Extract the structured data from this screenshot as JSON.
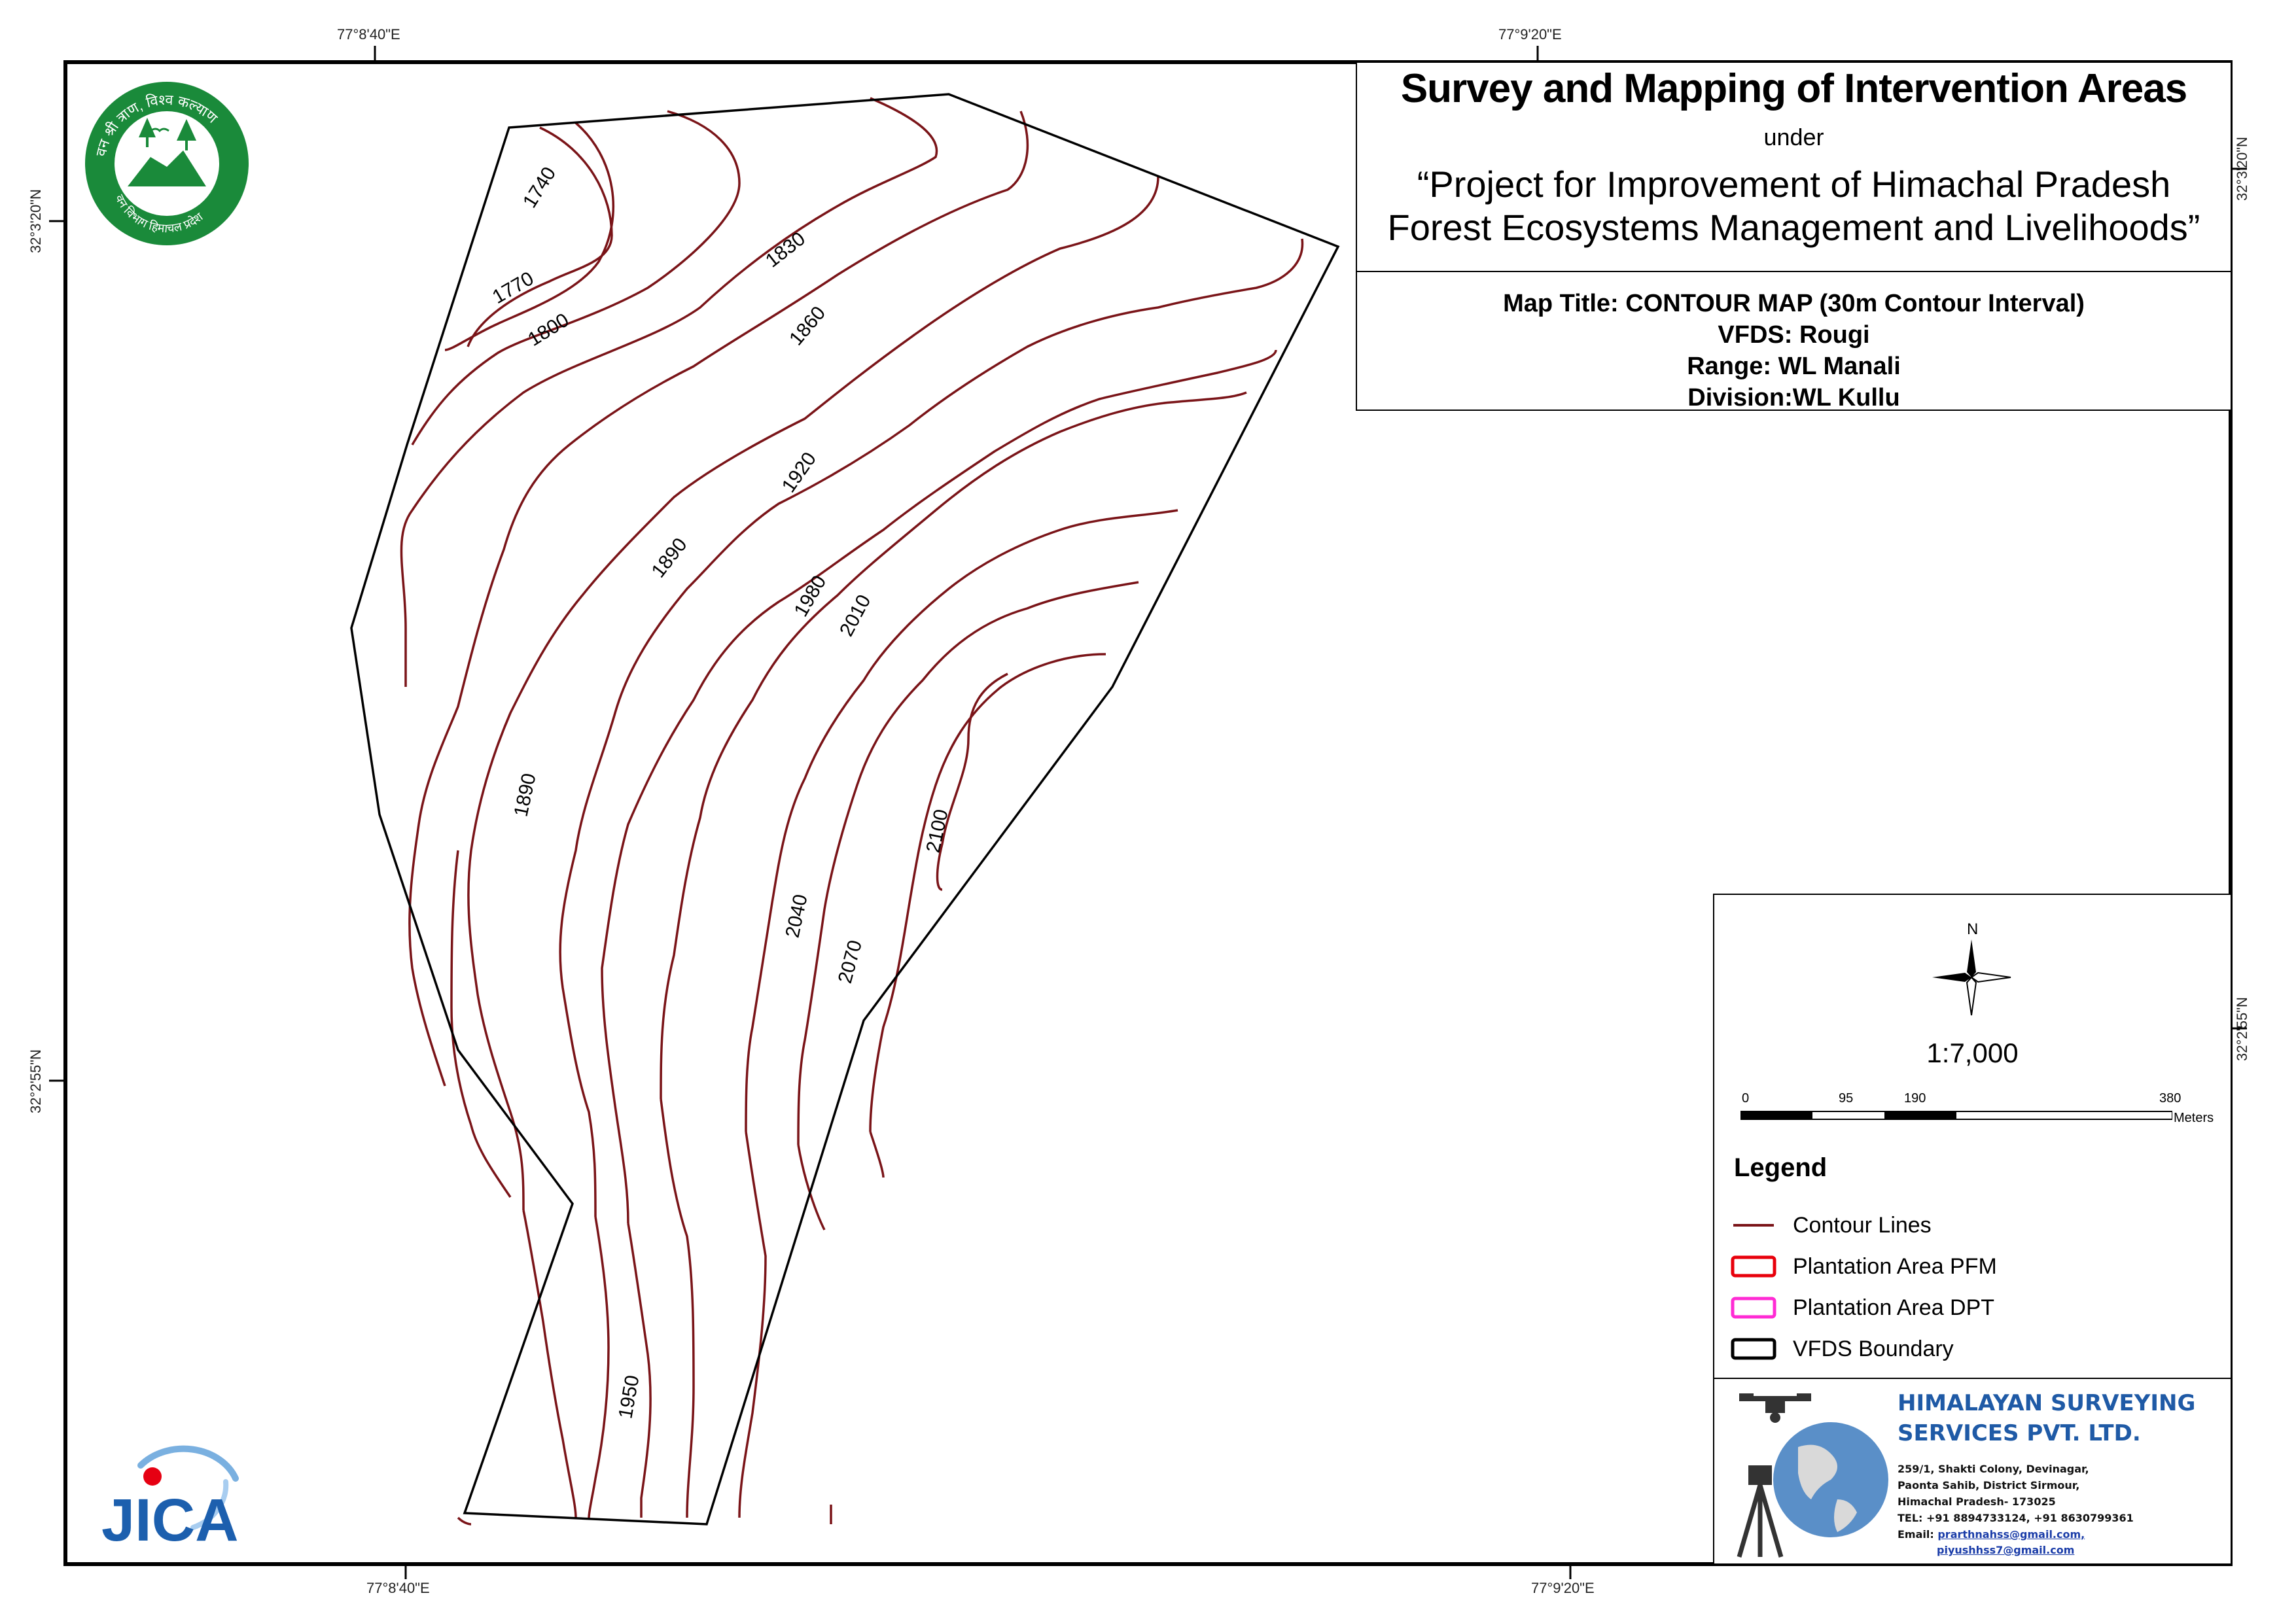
{
  "map": {
    "title": "Survey and Mapping of Intervention Areas",
    "under": "under",
    "project_line1": "“Project for Improvement of Himachal Pradesh",
    "project_line2": "Forest Ecosystems Management and Livelihoods”",
    "map_title": "Map Title: CONTOUR MAP (30m Contour Interval)",
    "vfds": "VFDS: Rougi",
    "range": "Range: WL Manali",
    "division": "Division:WL Kullu"
  },
  "coordinates": {
    "top_left": "77°8'40\"E",
    "top_right": "77°9'20\"E",
    "bottom_left": "77°8'40\"E",
    "bottom_right": "77°9'20\"E",
    "left_top": "32°3'20\"N",
    "left_bottom": "32°2'55\"N",
    "right_top": "32°3'20\"N",
    "right_bottom": "32°2'55\"N"
  },
  "contour_labels": [
    "1740",
    "1770",
    "1800",
    "1830",
    "1860",
    "1890",
    "1890",
    "1920",
    "1950",
    "1980",
    "2010",
    "2040",
    "2070",
    "2100"
  ],
  "north_label": "N",
  "scale": {
    "ratio": "1:7,000",
    "ticks": [
      "0",
      "95",
      "190",
      "380"
    ],
    "unit": "Meters"
  },
  "legend": {
    "title": "Legend",
    "items": [
      {
        "label": "Contour Lines",
        "color": "#7a1418"
      },
      {
        "label": "Plantation Area PFM",
        "color": "#e8000b"
      },
      {
        "label": "Plantation Area DPT",
        "color": "#ff2bd4"
      },
      {
        "label": "VFDS Boundary",
        "color": "#000000"
      }
    ]
  },
  "company": {
    "name_line1": "HIMALAYAN SURVEYING",
    "name_line2": "SERVICES PVT. LTD.",
    "address1": "259/1, Shakti Colony, Devinagar,",
    "address2": "Paonta Sahib, District Sirmour,",
    "address3": "Himachal Pradesh- 173025",
    "tel": "TEL: +91 8894733124, +91 8630799361",
    "email_label": "Email:",
    "email1": "prarthnahss@gmail.com,",
    "email2": "piyushhss7@gmail.com"
  },
  "logos": {
    "forest_dept_text_top": "वन श्री त्राण, विश्व कल्याण",
    "forest_dept_text_bottom": "वन विभाग हिमाचल प्रदेश",
    "jica": "JICA"
  },
  "colors": {
    "contour": "#7a1418",
    "boundary": "#000000",
    "forest_green": "#1a8a3a",
    "company_blue": "#1f5aa6",
    "jica_blue": "#1c5fae",
    "jica_red": "#e60012"
  }
}
